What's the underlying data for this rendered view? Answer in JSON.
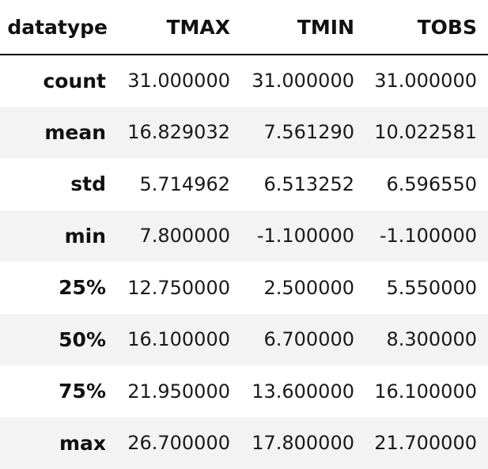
{
  "table": {
    "index_name": "datatype",
    "columns": [
      "TMAX",
      "TMIN",
      "TOBS"
    ],
    "rows": [
      {
        "label": "count",
        "values": [
          "31.000000",
          "31.000000",
          "31.000000"
        ]
      },
      {
        "label": "mean",
        "values": [
          "16.829032",
          "7.561290",
          "10.022581"
        ]
      },
      {
        "label": "std",
        "values": [
          "5.714962",
          "6.513252",
          "6.596550"
        ]
      },
      {
        "label": "min",
        "values": [
          "7.800000",
          "-1.100000",
          "-1.100000"
        ]
      },
      {
        "label": "25%",
        "values": [
          "12.750000",
          "2.500000",
          "5.550000"
        ]
      },
      {
        "label": "50%",
        "values": [
          "16.100000",
          "6.700000",
          "8.300000"
        ]
      },
      {
        "label": "75%",
        "values": [
          "21.950000",
          "13.600000",
          "16.100000"
        ]
      },
      {
        "label": "max",
        "values": [
          "26.700000",
          "17.800000",
          "21.700000"
        ]
      }
    ]
  },
  "colors": {
    "header_rule": "#000000",
    "stripe": "#f3f3f3",
    "text": "#111111"
  }
}
